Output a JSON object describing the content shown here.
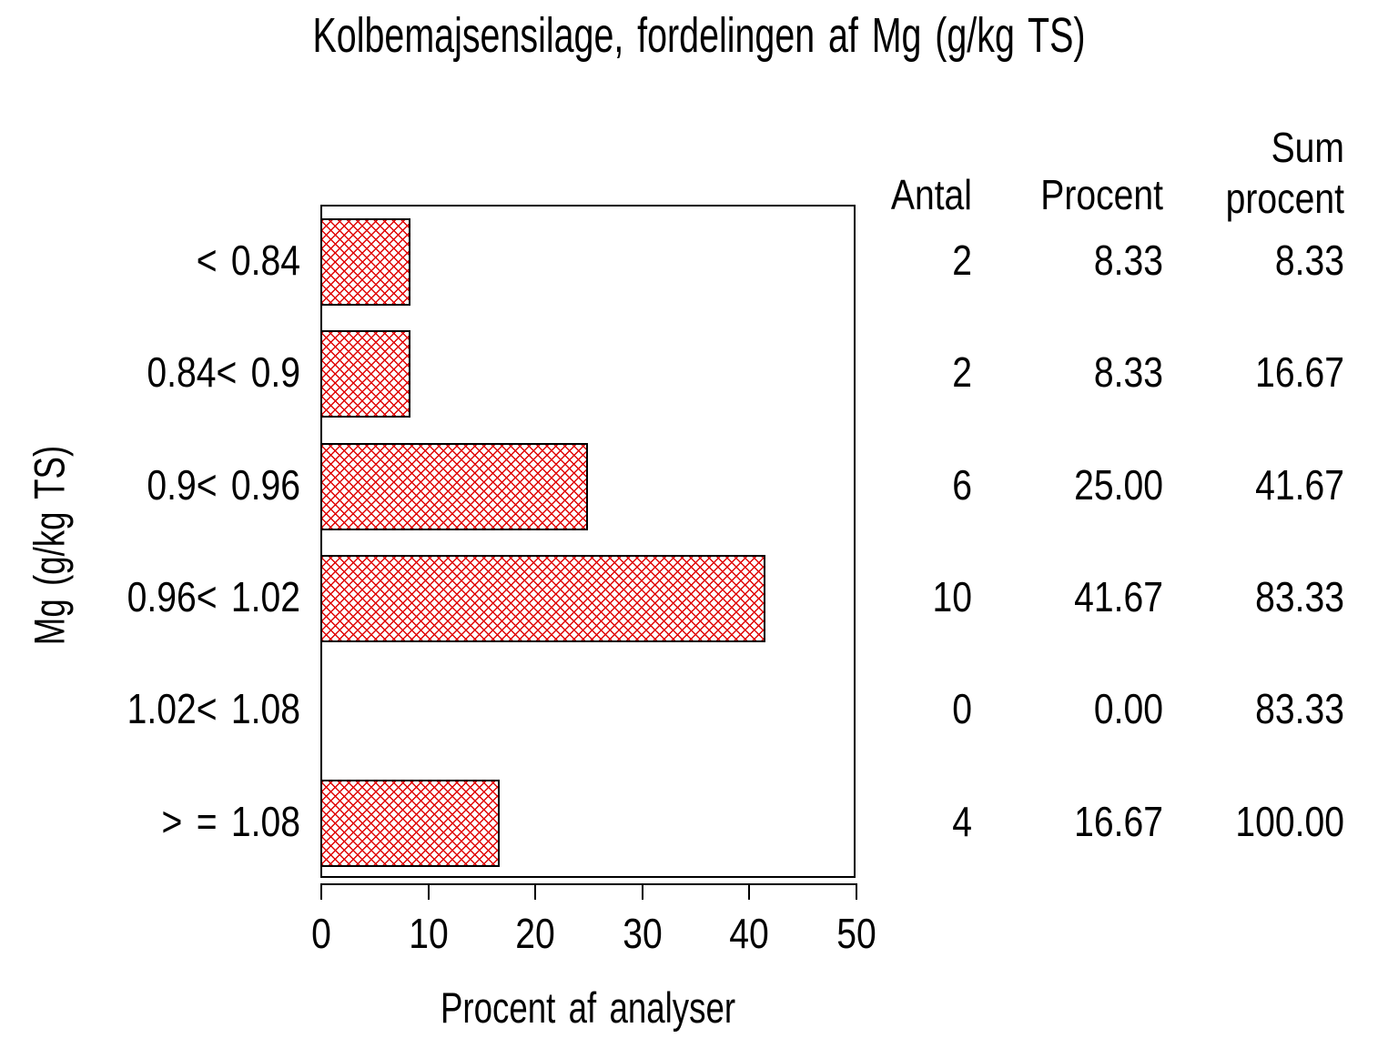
{
  "title": "Kolbemajsensilage, fordelingen af Mg (g/kg TS)",
  "chart_data": {
    "type": "bar",
    "orientation": "horizontal",
    "title": "Kolbemajsensilage, fordelingen af Mg (g/kg TS)",
    "categories": [
      "< 0.84",
      "0.84< 0.9",
      "0.9< 0.96",
      "0.96< 1.02",
      "1.02< 1.08",
      "> = 1.08"
    ],
    "values": [
      8.33,
      8.33,
      25.0,
      41.67,
      0.0,
      16.67
    ],
    "counts": [
      2,
      2,
      6,
      10,
      0,
      4
    ],
    "cum_percent": [
      8.33,
      16.67,
      41.67,
      83.33,
      83.33,
      100.0
    ],
    "xlabel": "Procent af analyser",
    "ylabel": "Mg (g/kg TS)",
    "xlim": [
      0,
      50
    ],
    "xticks": [
      "0",
      "10",
      "20",
      "30",
      "40",
      "50"
    ],
    "grid": "off",
    "legend": "none",
    "bar_pattern": "red-crosshatch",
    "bar_color": "#e00000",
    "bar_border_color": "#000000"
  },
  "table": {
    "headers": {
      "antal": "Antal",
      "procent": "Procent",
      "sum_line1": "Sum",
      "sum_line2": "procent"
    },
    "rows": [
      {
        "antal": "2",
        "procent": "8.33",
        "sum": "8.33"
      },
      {
        "antal": "2",
        "procent": "8.33",
        "sum": "16.67"
      },
      {
        "antal": "6",
        "procent": "25.00",
        "sum": "41.67"
      },
      {
        "antal": "10",
        "procent": "41.67",
        "sum": "83.33"
      },
      {
        "antal": "0",
        "procent": "0.00",
        "sum": "83.33"
      },
      {
        "antal": "4",
        "procent": "16.67",
        "sum": "100.00"
      }
    ]
  }
}
